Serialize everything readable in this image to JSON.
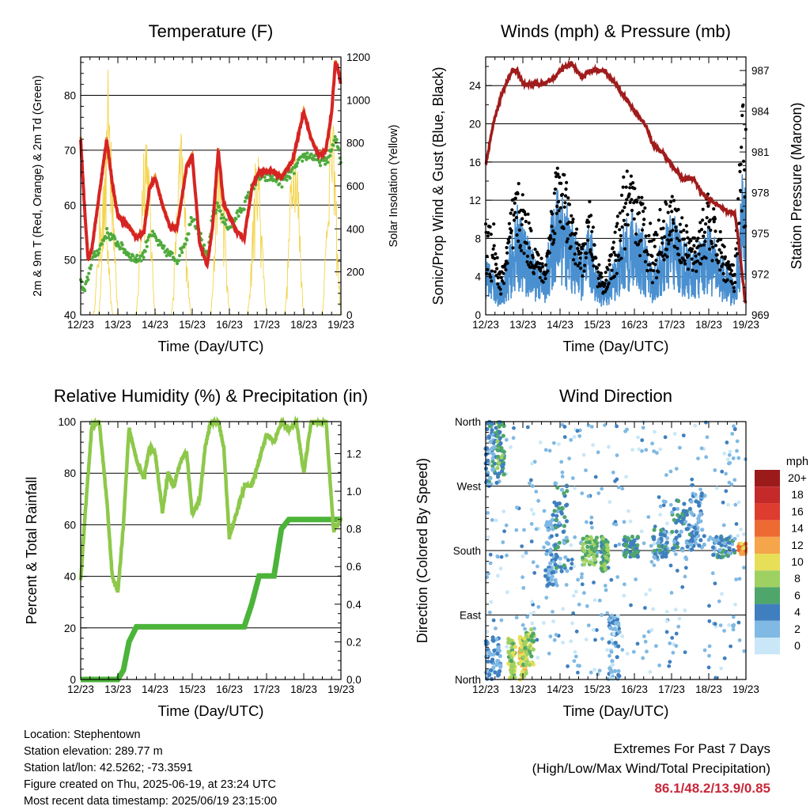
{
  "x_ticks": [
    "12/23",
    "13/23",
    "14/23",
    "15/23",
    "16/23",
    "17/23",
    "18/23",
    "19/23"
  ],
  "x_label": "Time (Day/UTC)",
  "temperature": {
    "title": "Temperature (F)",
    "ylabel_left": "2m & 9m T (Red, Orange) & 2m Td (Green)",
    "ylabel_right": "Solar Insolation (Yellow)",
    "y_ticks_left": [
      "40",
      "50",
      "60",
      "70",
      "80"
    ],
    "y_ticks_right": [
      "0",
      "200",
      "400",
      "600",
      "800",
      "1000",
      "1200"
    ]
  },
  "winds": {
    "title": "Winds (mph) & Pressure (mb)",
    "ylabel_left": "Sonic/Prop Wind & Gust (Blue, Black)",
    "ylabel_right": "Station Pressure (Maroon)",
    "y_ticks_left": [
      "0",
      "4",
      "8",
      "12",
      "16",
      "20",
      "24"
    ],
    "y_ticks_right": [
      "969",
      "972",
      "975",
      "978",
      "981",
      "984",
      "987"
    ]
  },
  "humidity": {
    "title": "Relative Humidity (%) & Precipitation (in)",
    "ylabel_left": "Percent & Total Rainfall",
    "y_ticks_left": [
      "0",
      "20",
      "40",
      "60",
      "80",
      "100"
    ],
    "y_ticks_right": [
      "0.0",
      "0.2",
      "0.4",
      "0.6",
      "0.8",
      "1.0",
      "1.2"
    ]
  },
  "direction": {
    "title": "Wind Direction",
    "ylabel_left": "Direction (Colored By Speed)",
    "y_ticks_left": [
      "North",
      "East",
      "South",
      "West",
      "North"
    ],
    "legend_title": "mph",
    "legend_labels": [
      "20+",
      "18",
      "16",
      "14",
      "12",
      "10",
      "8",
      "6",
      "4",
      "2",
      "0"
    ],
    "legend_colors": [
      "#9b1b1b",
      "#c42a2a",
      "#de3c2e",
      "#ee6a33",
      "#f5a64b",
      "#e7df58",
      "#9ed162",
      "#4ea66a",
      "#3f7fbf",
      "#80b9e3",
      "#c9e7f7"
    ]
  },
  "info": {
    "location": "Location: Stephentown",
    "elevation": "Station elevation: 289.77 m",
    "latlon": "Station lat/lon: 42.5262; -73.3591",
    "created": "Figure created on Thu, 2025-06-19, at 23:24 UTC",
    "recent": "Most recent data timestamp: 2025/06/19 23:15:00"
  },
  "extremes": {
    "line1": "Extremes For Past 7 Days",
    "line2": "(High/Low/Max Wind/Total Precipitation)",
    "values": "86.1/48.2/13.9/0.85"
  },
  "chart_data": [
    {
      "type": "line",
      "title": "Temperature (F)",
      "xlabel": "Time (Day/UTC)",
      "ylabel": "2m & 9m T (Red, Orange) & 2m Td (Green)",
      "ylabel_right": "Solar Insolation (Yellow)",
      "ylim": [
        40,
        87
      ],
      "ylim_right": [
        0,
        1200
      ],
      "x": [
        12.0,
        12.1,
        12.2,
        12.3,
        12.5,
        12.7,
        12.85,
        13.0,
        13.15,
        13.3,
        13.5,
        13.7,
        13.85,
        14.0,
        14.2,
        14.4,
        14.6,
        14.85,
        15.0,
        15.2,
        15.4,
        15.55,
        15.7,
        15.85,
        16.0,
        16.2,
        16.4,
        16.6,
        16.8,
        17.0,
        17.2,
        17.4,
        17.7,
        18.0,
        18.2,
        18.4,
        18.6,
        18.75,
        18.85,
        18.95,
        19.0
      ],
      "series": [
        {
          "name": "2m & 9m T",
          "values": [
            72,
            60,
            50,
            52,
            62,
            72,
            64,
            58,
            57,
            56,
            54,
            55,
            63,
            65,
            60,
            56,
            56,
            67,
            69,
            53,
            49,
            56,
            70,
            60,
            58,
            55,
            54,
            63,
            66,
            66,
            66,
            65,
            68,
            77,
            72,
            69,
            70,
            77,
            86,
            84,
            82
          ]
        },
        {
          "name": "2m Td",
          "values": [
            46,
            44,
            47,
            50,
            52,
            55,
            54,
            53,
            52,
            51,
            50,
            51,
            55,
            54,
            52,
            51,
            50,
            54,
            58,
            55,
            50,
            58,
            60,
            57,
            56,
            58,
            60,
            63,
            65,
            65,
            65,
            64,
            66,
            69,
            69,
            68,
            68,
            70,
            72,
            70,
            68
          ]
        }
      ],
      "solar_peaks": [
        {
          "x": 12.6,
          "value": 640
        },
        {
          "x": 12.75,
          "value": 1180
        },
        {
          "x": 13.75,
          "value": 950
        },
        {
          "x": 14.7,
          "value": 870
        },
        {
          "x": 15.75,
          "value": 830
        },
        {
          "x": 16.75,
          "value": 790
        },
        {
          "x": 17.75,
          "value": 950
        },
        {
          "x": 18.75,
          "value": 960
        }
      ]
    },
    {
      "type": "line",
      "title": "Winds (mph) & Pressure (mb)",
      "xlabel": "Time (Day/UTC)",
      "ylabel": "Sonic/Prop Wind & Gust (Blue, Black)",
      "ylabel_right": "Station Pressure (Maroon)",
      "ylim": [
        0,
        27
      ],
      "ylim_right": [
        969,
        988
      ],
      "x": [
        12.0,
        12.2,
        12.4,
        12.7,
        12.85,
        13.0,
        13.3,
        13.6,
        13.85,
        14.0,
        14.3,
        14.6,
        14.8,
        15.0,
        15.2,
        15.5,
        15.75,
        16.0,
        16.3,
        16.5,
        16.75,
        17.0,
        17.3,
        17.6,
        17.8,
        18.0,
        18.3,
        18.55,
        18.7,
        18.8,
        18.9,
        19.0
      ],
      "series": [
        {
          "name": "Station Pressure",
          "values": [
            980,
            983,
            985,
            987,
            987,
            986,
            986,
            986,
            986.5,
            987,
            987.5,
            986.5,
            987,
            987,
            987,
            986,
            985,
            984,
            983,
            981.5,
            981,
            980,
            979,
            979,
            978,
            977.5,
            977,
            976.5,
            976.5,
            974.5,
            972,
            969.5
          ]
        },
        {
          "name": "Wind (mean)",
          "values": [
            4,
            3,
            2,
            5,
            7,
            6,
            4,
            3,
            8,
            9,
            6,
            4,
            6,
            3,
            2,
            4,
            6,
            7,
            5,
            3,
            5,
            7,
            5,
            4,
            5,
            6,
            4,
            3,
            2,
            5,
            9,
            8
          ]
        },
        {
          "name": "Gust (max)",
          "values": [
            10,
            12,
            4,
            12,
            14,
            13,
            8,
            5,
            15,
            18,
            11,
            7,
            12,
            6,
            4,
            9,
            16,
            14,
            12,
            9,
            12,
            13,
            10,
            8,
            11,
            13,
            9,
            6,
            5,
            14,
            22,
            25
          ]
        }
      ]
    },
    {
      "type": "line",
      "title": "Relative Humidity (%) & Precipitation (in)",
      "xlabel": "Time (Day/UTC)",
      "ylabel": "Percent & Total Rainfall",
      "ylim": [
        0,
        100
      ],
      "ylim_right": [
        0,
        1.37
      ],
      "x": [
        12.0,
        12.1,
        12.2,
        12.3,
        12.5,
        12.7,
        12.85,
        13.0,
        13.15,
        13.3,
        13.5,
        13.7,
        13.85,
        14.0,
        14.2,
        14.35,
        14.5,
        14.7,
        14.85,
        15.0,
        15.2,
        15.35,
        15.5,
        15.7,
        15.85,
        16.0,
        16.2,
        16.4,
        16.6,
        16.8,
        17.0,
        17.2,
        17.4,
        17.6,
        17.8,
        18.0,
        18.2,
        18.4,
        18.6,
        18.8,
        18.9,
        19.0
      ],
      "series": [
        {
          "name": "RH",
          "values": [
            38,
            60,
            80,
            98,
            100,
            70,
            40,
            34,
            60,
            98,
            85,
            78,
            90,
            88,
            65,
            80,
            75,
            85,
            88,
            64,
            70,
            90,
            100,
            100,
            90,
            55,
            65,
            75,
            75,
            85,
            95,
            92,
            100,
            97,
            100,
            80,
            100,
            100,
            100,
            58,
            60,
            62
          ]
        },
        {
          "name": "Total Rainfall",
          "values": [
            0,
            0,
            0,
            0,
            0,
            0,
            0,
            0,
            0.05,
            0.2,
            0.28,
            0.28,
            0.28,
            0.28,
            0.28,
            0.28,
            0.28,
            0.28,
            0.28,
            0.28,
            0.28,
            0.28,
            0.28,
            0.28,
            0.28,
            0.28,
            0.28,
            0.28,
            0.4,
            0.55,
            0.55,
            0.55,
            0.8,
            0.85,
            0.85,
            0.85,
            0.85,
            0.85,
            0.85,
            0.85,
            0.85,
            0.85
          ]
        }
      ]
    },
    {
      "type": "scatter",
      "title": "Wind Direction",
      "xlabel": "Time (Day/UTC)",
      "ylabel": "Direction (Colored By Speed)",
      "y_categories": [
        "North",
        "East",
        "South",
        "West",
        "North"
      ],
      "ylim_degrees": [
        0,
        360
      ],
      "colorbar": {
        "title": "mph",
        "labels": [
          "20+",
          "18",
          "16",
          "14",
          "12",
          "10",
          "8",
          "6",
          "4",
          "2",
          "0"
        ]
      },
      "clusters": [
        {
          "x_range": [
            12.0,
            12.3
          ],
          "deg_range": [
            270,
            360
          ],
          "speed": 4
        },
        {
          "x_range": [
            12.0,
            12.4
          ],
          "deg_range": [
            0,
            60
          ],
          "speed": 3
        },
        {
          "x_range": [
            12.3,
            12.5
          ],
          "deg_range": [
            280,
            360
          ],
          "speed": 6
        },
        {
          "x_range": [
            12.6,
            12.8
          ],
          "deg_range": [
            0,
            60
          ],
          "speed": 8
        },
        {
          "x_range": [
            12.9,
            13.1
          ],
          "deg_range": [
            0,
            60
          ],
          "speed": 10
        },
        {
          "x_range": [
            13.0,
            13.3
          ],
          "deg_range": [
            20,
            70
          ],
          "speed": 8
        },
        {
          "x_range": [
            13.6,
            13.9
          ],
          "deg_range": [
            130,
            230
          ],
          "speed": 3
        },
        {
          "x_range": [
            13.85,
            14.2
          ],
          "deg_range": [
            150,
            280
          ],
          "speed": 4
        },
        {
          "x_range": [
            14.6,
            15.0
          ],
          "deg_range": [
            160,
            200
          ],
          "speed": 7
        },
        {
          "x_range": [
            15.1,
            15.3
          ],
          "deg_range": [
            150,
            200
          ],
          "speed": 6
        },
        {
          "x_range": [
            15.3,
            15.6
          ],
          "deg_range": [
            0,
            90
          ],
          "speed": 2
        },
        {
          "x_range": [
            15.7,
            16.1
          ],
          "deg_range": [
            170,
            200
          ],
          "speed": 5
        },
        {
          "x_range": [
            16.5,
            16.9
          ],
          "deg_range": [
            170,
            210
          ],
          "speed": 4
        },
        {
          "x_range": [
            17.0,
            17.5
          ],
          "deg_range": [
            180,
            250
          ],
          "speed": 4
        },
        {
          "x_range": [
            17.5,
            17.9
          ],
          "deg_range": [
            180,
            260
          ],
          "speed": 3
        },
        {
          "x_range": [
            18.1,
            18.7
          ],
          "deg_range": [
            170,
            200
          ],
          "speed": 4
        },
        {
          "x_range": [
            18.8,
            19.0
          ],
          "deg_range": [
            175,
            190
          ],
          "speed": 12
        }
      ]
    }
  ]
}
